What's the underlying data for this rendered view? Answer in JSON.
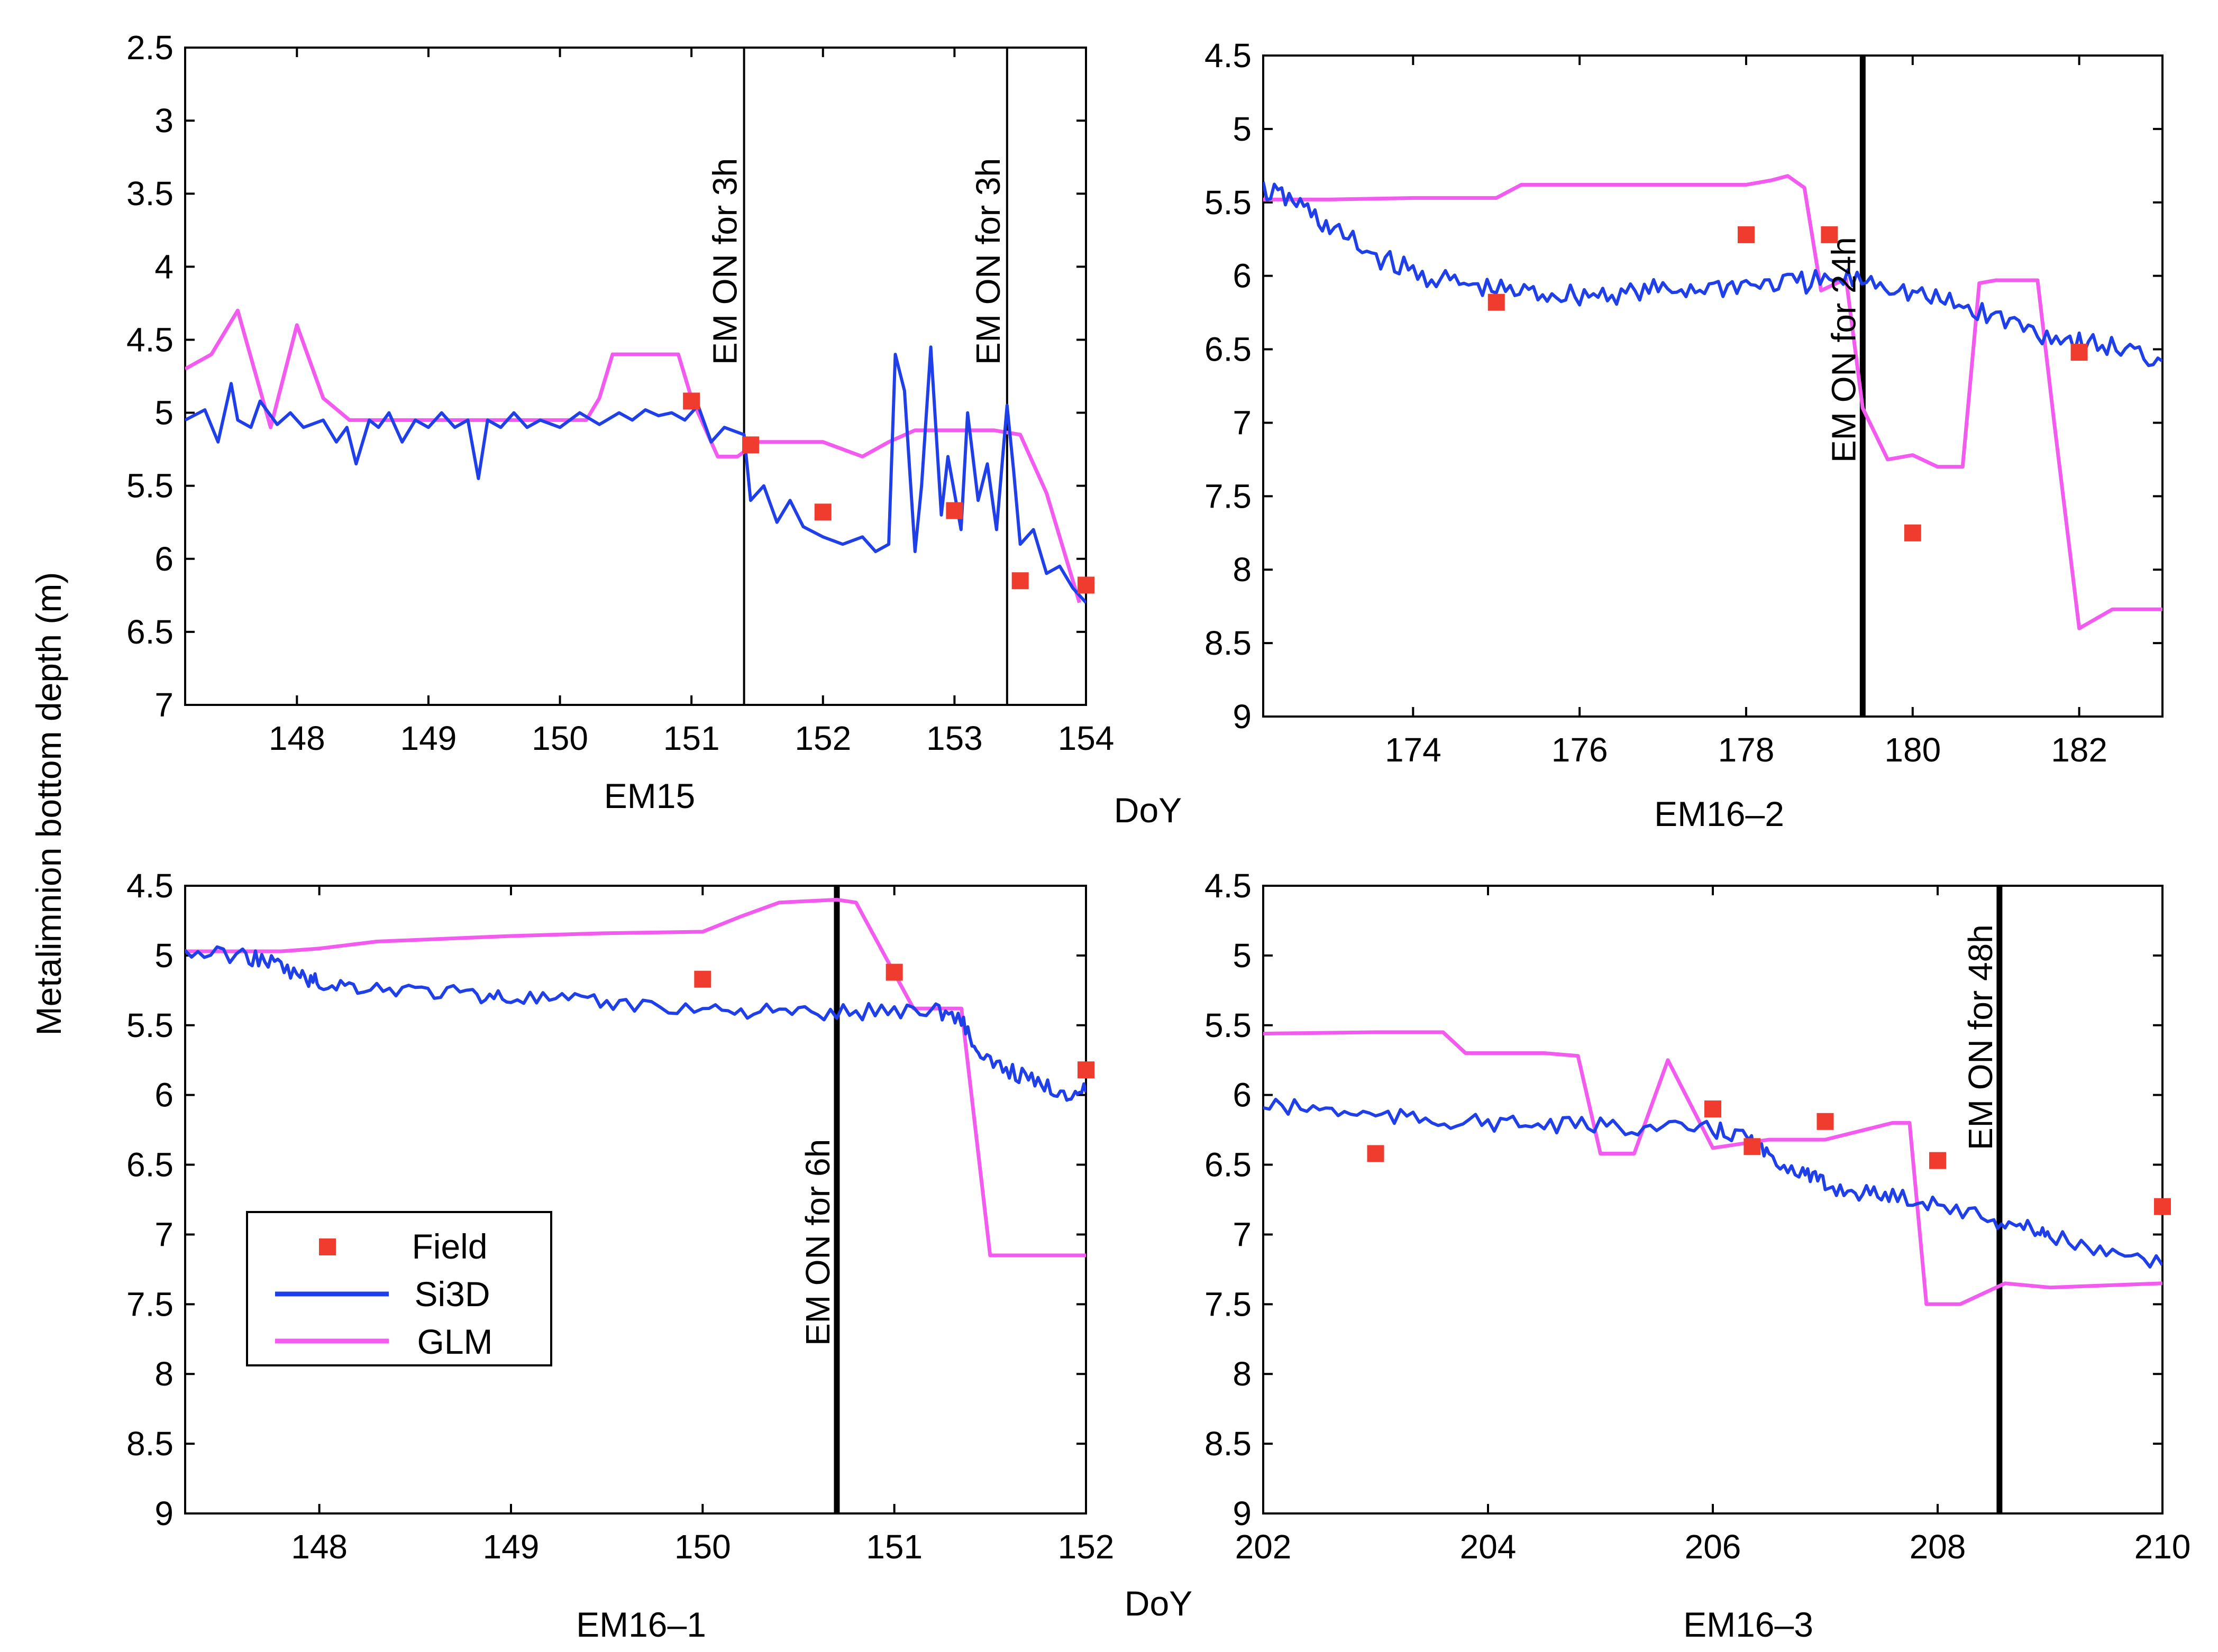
{
  "figure": {
    "ylabel": "Metalimnion bottom depth (m)",
    "xlabel": "DoY",
    "colors": {
      "field": "#f03c2e",
      "si3d": "#1f3fe8",
      "glm": "#f25af0"
    }
  },
  "legend": {
    "items": [
      "Field",
      "Si3D",
      "GLM"
    ]
  },
  "chart_data": [
    {
      "type": "line",
      "id": "p1",
      "title": "EM15",
      "xlabel": "DoY",
      "ylabel": "Metalimnion bottom depth (m)",
      "xlim": [
        147.15,
        154.0
      ],
      "ylim": [
        2.5,
        7
      ],
      "y_inverted": true,
      "xticks": [
        148,
        149,
        150,
        151,
        152,
        153,
        154
      ],
      "yticks": [
        "2.5",
        "3",
        "3.5",
        "4",
        "4.5",
        "5",
        "5.5",
        "6",
        "6.5",
        "7"
      ],
      "show_xlabel": true,
      "event_lines": [
        {
          "x": 151.4,
          "label": "EM ON for 3h",
          "width": "thin"
        },
        {
          "x": 153.4,
          "label": "EM ON for 3h",
          "width": "thin"
        }
      ],
      "field": {
        "x": [
          151.0,
          151.45,
          152.0,
          153.0,
          153.5,
          154.0
        ],
        "y": [
          4.92,
          5.22,
          5.68,
          5.67,
          6.15,
          6.18
        ]
      },
      "si3d": {
        "x": [
          147.15,
          147.3,
          147.4,
          147.5,
          147.55,
          147.65,
          147.72,
          147.85,
          147.95,
          148.05,
          148.2,
          148.3,
          148.38,
          148.45,
          148.55,
          148.62,
          148.7,
          148.8,
          148.9,
          149.0,
          149.1,
          149.2,
          149.3,
          149.38,
          149.45,
          149.55,
          149.65,
          149.75,
          149.85,
          150.0,
          150.15,
          150.3,
          150.45,
          150.55,
          150.65,
          150.75,
          150.85,
          150.95,
          151.05,
          151.15,
          151.25,
          151.4,
          151.45,
          151.55,
          151.65,
          151.75,
          151.85,
          152.0,
          152.15,
          152.3,
          152.4,
          152.5,
          152.55,
          152.62,
          152.7,
          152.75,
          152.82,
          152.9,
          152.95,
          153.05,
          153.1,
          153.18,
          153.25,
          153.32,
          153.4,
          153.45,
          153.5,
          153.6,
          153.7,
          153.8,
          153.9,
          154.0
        ],
        "y": [
          5.05,
          4.98,
          5.2,
          4.8,
          5.05,
          5.1,
          4.92,
          5.08,
          5.0,
          5.1,
          5.05,
          5.2,
          5.1,
          5.35,
          5.05,
          5.1,
          5.0,
          5.2,
          5.05,
          5.1,
          5.0,
          5.1,
          5.05,
          5.45,
          5.05,
          5.1,
          5.0,
          5.1,
          5.05,
          5.1,
          5.0,
          5.08,
          5.0,
          5.05,
          4.98,
          5.02,
          5.0,
          5.05,
          4.95,
          5.2,
          5.1,
          5.15,
          5.6,
          5.5,
          5.75,
          5.6,
          5.78,
          5.85,
          5.9,
          5.85,
          5.95,
          5.9,
          4.6,
          4.85,
          5.95,
          5.5,
          4.55,
          5.7,
          5.3,
          5.8,
          5.0,
          5.6,
          5.35,
          5.8,
          4.95,
          5.4,
          5.9,
          5.8,
          6.1,
          6.05,
          6.2,
          6.3
        ]
      },
      "glm": {
        "x": [
          147.15,
          147.35,
          147.55,
          147.8,
          148.0,
          148.2,
          148.4,
          149.0,
          149.5,
          150.0,
          150.2,
          150.3,
          150.4,
          150.55,
          150.9,
          151.0,
          151.2,
          151.35,
          151.5,
          151.8,
          152.0,
          152.3,
          152.5,
          152.7,
          153.0,
          153.3,
          153.5,
          153.7,
          153.95
        ],
        "y": [
          4.7,
          4.6,
          4.3,
          5.1,
          4.4,
          4.9,
          5.05,
          5.05,
          5.05,
          5.05,
          5.05,
          4.9,
          4.6,
          4.6,
          4.6,
          4.9,
          5.3,
          5.3,
          5.2,
          5.2,
          5.2,
          5.3,
          5.2,
          5.12,
          5.12,
          5.12,
          5.15,
          5.55,
          6.3
        ]
      }
    },
    {
      "type": "line",
      "id": "p2",
      "title": "EM16–2",
      "xlabel": "DoY",
      "ylabel": "Metalimnion bottom depth (m)",
      "xlim": [
        172.2,
        183.0
      ],
      "ylim": [
        4.5,
        9
      ],
      "y_inverted": true,
      "xticks": [
        174,
        176,
        178,
        180,
        182
      ],
      "yticks": [
        "4.5",
        "5",
        "5.5",
        "6",
        "6.5",
        "7",
        "7.5",
        "8",
        "8.5",
        "9"
      ],
      "show_xlabel": false,
      "event_lines": [
        {
          "x": 179.4,
          "label": "EM ON for 24h",
          "width": "thick"
        }
      ],
      "field": {
        "x": [
          175.0,
          178.0,
          179.0,
          180.0,
          182.0
        ],
        "y": [
          6.18,
          5.72,
          5.72,
          7.75,
          6.52
        ]
      },
      "si3d": {
        "x": [
          172.2,
          172.6,
          173.0,
          173.5,
          174.0,
          174.5,
          175.0,
          175.5,
          176.0,
          176.5,
          177.0,
          177.5,
          178.0,
          178.5,
          179.0,
          179.5,
          180.0,
          180.5,
          181.0,
          181.5,
          182.0,
          182.5,
          183.0
        ],
        "y": [
          5.42,
          5.5,
          5.68,
          5.85,
          5.98,
          6.05,
          6.1,
          6.12,
          6.13,
          6.12,
          6.1,
          6.08,
          6.06,
          6.05,
          6.04,
          6.02,
          6.12,
          6.2,
          6.28,
          6.38,
          6.45,
          6.5,
          6.58
        ]
      },
      "glm": {
        "x": [
          172.2,
          173.0,
          174.0,
          175.0,
          175.3,
          176.0,
          177.0,
          178.0,
          178.3,
          178.5,
          178.7,
          178.9,
          179.2,
          179.4,
          179.7,
          180.0,
          180.3,
          180.6,
          180.8,
          181.0,
          181.5,
          181.7,
          182.0,
          182.4,
          183.0
        ],
        "y": [
          5.48,
          5.48,
          5.47,
          5.47,
          5.38,
          5.38,
          5.38,
          5.38,
          5.35,
          5.32,
          5.4,
          6.1,
          6.02,
          6.9,
          7.25,
          7.22,
          7.3,
          7.3,
          6.05,
          6.03,
          6.03,
          7.0,
          8.4,
          8.27,
          8.27
        ]
      }
    },
    {
      "type": "line",
      "id": "p3",
      "title": "EM16–1",
      "xlabel": "DoY",
      "ylabel": "Metalimnion bottom depth (m)",
      "xlim": [
        147.3,
        152.0
      ],
      "ylim": [
        4.5,
        9
      ],
      "y_inverted": true,
      "xticks": [
        148,
        149,
        150,
        151,
        152
      ],
      "yticks": [
        "4.5",
        "5",
        "5.5",
        "6",
        "6.5",
        "7",
        "7.5",
        "8",
        "8.5",
        "9"
      ],
      "show_xlabel": true,
      "event_lines": [
        {
          "x": 150.7,
          "label": "EM ON for 6h",
          "width": "thick"
        }
      ],
      "field": {
        "x": [
          150.0,
          151.0,
          152.0
        ],
        "y": [
          5.17,
          5.12,
          5.82
        ]
      },
      "si3d": {
        "x": [
          147.3,
          147.6,
          147.75,
          147.9,
          148.0,
          148.2,
          148.5,
          148.8,
          149.0,
          149.3,
          149.6,
          150.0,
          150.3,
          150.6,
          150.9,
          151.2,
          151.35,
          151.45,
          151.6,
          151.75,
          151.9,
          152.0
        ],
        "y": [
          4.98,
          5.0,
          5.05,
          5.15,
          5.2,
          5.22,
          5.25,
          5.28,
          5.3,
          5.33,
          5.35,
          5.38,
          5.4,
          5.42,
          5.4,
          5.38,
          5.45,
          5.75,
          5.82,
          5.92,
          5.98,
          5.98
        ]
      },
      "glm": {
        "x": [
          147.3,
          147.8,
          148.0,
          148.3,
          149.0,
          149.5,
          150.0,
          150.2,
          150.4,
          150.7,
          150.8,
          150.95,
          151.1,
          151.25,
          151.35,
          151.5,
          151.7,
          152.0
        ],
        "y": [
          4.97,
          4.97,
          4.95,
          4.9,
          4.86,
          4.84,
          4.83,
          4.72,
          4.62,
          4.6,
          4.62,
          5.0,
          5.38,
          5.38,
          5.38,
          7.15,
          7.15,
          7.15
        ]
      }
    },
    {
      "type": "line",
      "id": "p4",
      "title": "EM16–3",
      "xlabel": "DoY",
      "ylabel": "Metalimnion bottom depth (m)",
      "xlim": [
        202,
        210
      ],
      "ylim": [
        4.5,
        9
      ],
      "y_inverted": true,
      "xticks": [
        202,
        204,
        206,
        208,
        210
      ],
      "yticks": [
        "4.5",
        "5",
        "5.5",
        "6",
        "6.5",
        "7",
        "7.5",
        "8",
        "8.5",
        "9"
      ],
      "show_xlabel": false,
      "event_lines": [
        {
          "x": 208.55,
          "label": "EM ON for 48h",
          "width": "thick"
        }
      ],
      "field": {
        "x": [
          203.0,
          206.0,
          206.35,
          207.0,
          208.0,
          210.0
        ],
        "y": [
          6.42,
          6.1,
          6.37,
          6.19,
          6.47,
          6.8
        ]
      },
      "si3d": {
        "x": [
          202.0,
          202.5,
          203.0,
          203.5,
          204.0,
          204.5,
          205.0,
          205.5,
          206.0,
          206.3,
          206.5,
          206.8,
          207.0,
          207.3,
          207.6,
          208.0,
          208.5,
          208.8,
          209.0,
          209.5,
          210.0
        ],
        "y": [
          6.08,
          6.1,
          6.15,
          6.18,
          6.2,
          6.22,
          6.22,
          6.24,
          6.25,
          6.3,
          6.45,
          6.55,
          6.65,
          6.7,
          6.72,
          6.78,
          6.9,
          6.95,
          7.0,
          7.15,
          7.22
        ]
      },
      "glm": {
        "x": [
          202.0,
          203.0,
          203.6,
          203.8,
          204.5,
          204.8,
          205.0,
          205.3,
          205.6,
          206.0,
          206.5,
          207.0,
          207.6,
          207.75,
          207.9,
          208.2,
          208.6,
          209.0,
          210.0
        ],
        "y": [
          5.56,
          5.55,
          5.55,
          5.7,
          5.7,
          5.72,
          6.42,
          6.42,
          5.75,
          6.38,
          6.32,
          6.32,
          6.2,
          6.2,
          7.5,
          7.5,
          7.35,
          7.38,
          7.35
        ]
      }
    }
  ]
}
